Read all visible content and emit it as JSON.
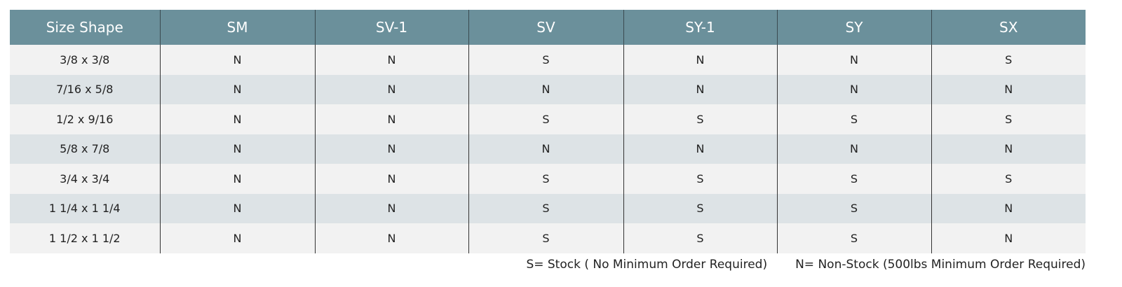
{
  "table": {
    "headers": [
      "Size Shape",
      "SM",
      "SV-1",
      "SV",
      "SY-1",
      "SY",
      "SX"
    ],
    "rows": [
      [
        "3/8 x 3/8",
        "N",
        "N",
        "S",
        "N",
        "N",
        "S"
      ],
      [
        "7/16 x 5/8",
        "N",
        "N",
        "N",
        "N",
        "N",
        "N"
      ],
      [
        "1/2 x 9/16",
        "N",
        "N",
        "S",
        "S",
        "S",
        "S"
      ],
      [
        "5/8 x 7/8",
        "N",
        "N",
        "N",
        "N",
        "N",
        "N"
      ],
      [
        "3/4 x 3/4",
        "N",
        "N",
        "S",
        "S",
        "S",
        "S"
      ],
      [
        "1 1/4 x 1 1/4",
        "N",
        "N",
        "S",
        "S",
        "S",
        "N"
      ],
      [
        "1 1/2 x 1 1/2",
        "N",
        "N",
        "S",
        "S",
        "S",
        "N"
      ]
    ]
  },
  "legend": [
    "S= Stock ( No Minimum Order Required)",
    "N= Non-Stock (500lbs Minimum Order Required)"
  ]
}
